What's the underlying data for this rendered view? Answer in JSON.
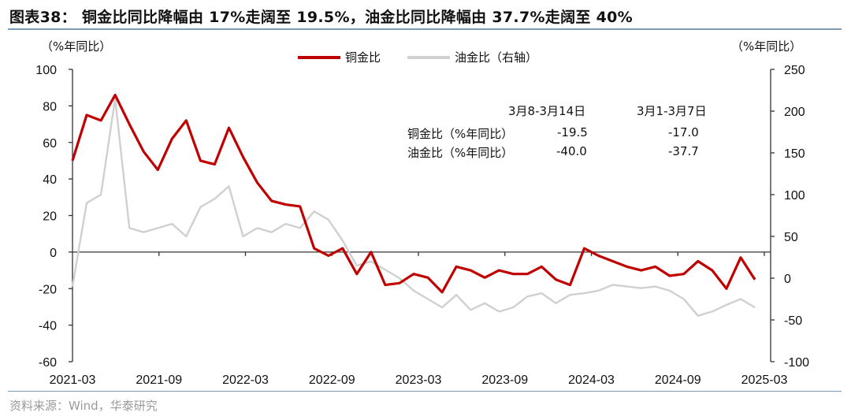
{
  "header": {
    "title": "图表38： 铜金比同比降幅由 17%走阔至 19.5%，油金比同比降幅由 37.7%走阔至 40%"
  },
  "footer": {
    "source": "资料来源：Wind，华泰研究"
  },
  "axes": {
    "left_unit": "（%年同比）",
    "right_unit": "（%年同比）"
  },
  "legend": {
    "items": [
      {
        "label": "铜金比",
        "color": "#c00000"
      },
      {
        "label": "油金比（右轴）",
        "color": "#d0d0d0"
      }
    ]
  },
  "table": {
    "headers": [
      "",
      "3月8-3月14日",
      "3月1-3月7日"
    ],
    "rows": [
      {
        "label": "铜金比（%年同比）",
        "values": [
          "-19.5",
          "-17.0"
        ]
      },
      {
        "label": "油金比（%年同比）",
        "values": [
          "-40.0",
          "-37.7"
        ]
      }
    ]
  },
  "chart_data": {
    "type": "line",
    "title": "铜金比同比降幅由 17%走阔至 19.5%，油金比同比降幅由 37.7%走阔至 40%",
    "xlabel": "",
    "ylabel": "%年同比",
    "y2label": "%年同比",
    "ylim": [
      -60,
      100
    ],
    "y2lim": [
      -100,
      250
    ],
    "yticks": [
      -60,
      -40,
      -20,
      0,
      20,
      40,
      60,
      80,
      100
    ],
    "y2ticks": [
      -100,
      -50,
      0,
      50,
      100,
      150,
      200,
      250
    ],
    "x_tick_labels": [
      "2021-03",
      "2021-09",
      "2022-03",
      "2022-09",
      "2023-03",
      "2023-09",
      "2024-03",
      "2024-09",
      "2025-03"
    ],
    "legend_position": "top-center",
    "grid": false,
    "x": [
      "2021-03",
      "2021-04",
      "2021-05",
      "2021-06",
      "2021-07",
      "2021-08",
      "2021-09",
      "2021-10",
      "2021-11",
      "2021-12",
      "2022-01",
      "2022-02",
      "2022-03",
      "2022-04",
      "2022-05",
      "2022-06",
      "2022-07",
      "2022-08",
      "2022-09",
      "2022-10",
      "2022-11",
      "2022-12",
      "2023-01",
      "2023-02",
      "2023-03",
      "2023-04",
      "2023-05",
      "2023-06",
      "2023-07",
      "2023-08",
      "2023-09",
      "2023-10",
      "2023-11",
      "2023-12",
      "2024-01",
      "2024-02",
      "2024-03",
      "2024-04",
      "2024-05",
      "2024-06",
      "2024-07",
      "2024-08",
      "2024-09",
      "2024-10",
      "2024-11",
      "2024-12",
      "2025-01",
      "2025-02",
      "2025-03"
    ],
    "series": [
      {
        "name": "铜金比",
        "axis": "left",
        "color": "#c00000",
        "values": [
          50,
          75,
          72,
          86,
          70,
          55,
          45,
          62,
          72,
          50,
          48,
          68,
          52,
          38,
          28,
          26,
          25,
          2,
          -2,
          2,
          -12,
          0,
          -18,
          -17,
          -12,
          -14,
          -22,
          -8,
          -10,
          -14,
          -10,
          -12,
          -12,
          -8,
          -15,
          -18,
          2,
          -2,
          -5,
          -8,
          -10,
          -8,
          -13,
          -12,
          -5,
          -10,
          -20,
          -3,
          -15
        ]
      },
      {
        "name": "油金比（右轴）",
        "axis": "right",
        "color": "#d0d0d0",
        "values": [
          -10,
          90,
          100,
          215,
          60,
          55,
          60,
          65,
          50,
          85,
          95,
          110,
          50,
          60,
          55,
          65,
          60,
          80,
          70,
          45,
          15,
          20,
          10,
          0,
          -15,
          -25,
          -35,
          -20,
          -38,
          -30,
          -40,
          -35,
          -22,
          -18,
          -30,
          -20,
          -18,
          -15,
          -8,
          -10,
          -12,
          -10,
          -15,
          -25,
          -45,
          -40,
          -32,
          -25,
          -35
        ]
      }
    ],
    "annotation_table": {
      "headers": [
        "3月8-3月14日",
        "3月1-3月7日"
      ],
      "rows": [
        {
          "label": "铜金比（%年同比）",
          "values": [
            -19.5,
            -17.0
          ]
        },
        {
          "label": "油金比（%年同比）",
          "values": [
            -40.0,
            -37.7
          ]
        }
      ]
    }
  }
}
